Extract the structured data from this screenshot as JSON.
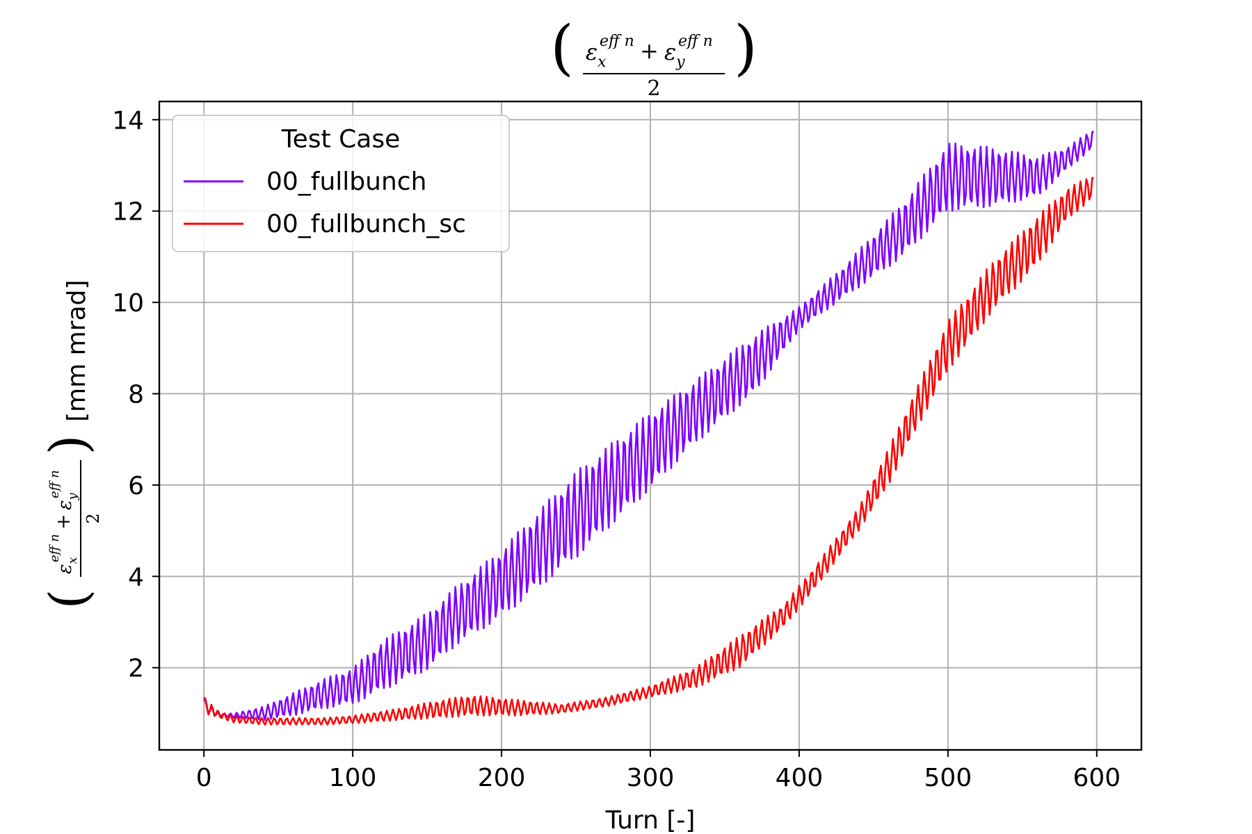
{
  "chart_data": {
    "type": "line",
    "title": {
      "frac_num": "εx eff n + εy eff n",
      "frac_den": "2"
    },
    "xlabel": "Turn [-]",
    "ylabel": {
      "frac_num": "εx eff n + εy eff n",
      "frac_den": "2",
      "unit": "[mm mrad]"
    },
    "xlim": [
      -30,
      630
    ],
    "ylim": [
      0.2,
      14.4
    ],
    "xticks": [
      0,
      100,
      200,
      300,
      400,
      500,
      600
    ],
    "yticks": [
      2,
      4,
      6,
      8,
      10,
      12,
      14
    ],
    "grid": true,
    "legend": {
      "title": "Test Case",
      "placement": "top-left"
    },
    "series": [
      {
        "name": "00_fullbunch",
        "color": "#7f00ff",
        "env": {
          "x": [
            0,
            10,
            20,
            40,
            60,
            80,
            100,
            120,
            150,
            170,
            200,
            250,
            300,
            330,
            370,
            400,
            430,
            470,
            500,
            530,
            560,
            580,
            598
          ],
          "lo": [
            1.0,
            0.95,
            0.9,
            0.85,
            0.95,
            1.1,
            1.2,
            1.5,
            1.95,
            2.5,
            3.1,
            4.4,
            5.9,
            6.9,
            8.0,
            9.4,
            10.1,
            11.0,
            12.0,
            12.1,
            12.3,
            12.9,
            13.4
          ],
          "hi": [
            1.3,
            1.0,
            1.0,
            1.15,
            1.45,
            1.75,
            2.0,
            2.6,
            3.2,
            3.8,
            4.6,
            6.3,
            7.6,
            8.3,
            9.3,
            9.9,
            10.8,
            12.2,
            13.5,
            13.4,
            13.2,
            13.4,
            13.8
          ]
        }
      },
      {
        "name": "00_fullbunch_sc",
        "color": "#ff0000",
        "env": {
          "x": [
            0,
            10,
            20,
            40,
            60,
            80,
            100,
            130,
            160,
            180,
            210,
            240,
            270,
            300,
            330,
            360,
            390,
            410,
            440,
            460,
            480,
            500,
            530,
            560,
            580,
            598
          ],
          "lo": [
            1.0,
            0.9,
            0.8,
            0.75,
            0.75,
            0.75,
            0.78,
            0.85,
            0.9,
            0.95,
            0.95,
            1.0,
            1.15,
            1.35,
            1.55,
            2.0,
            2.9,
            3.7,
            5.0,
            6.0,
            7.3,
            8.5,
            9.8,
            10.8,
            11.8,
            12.3
          ],
          "hi": [
            1.35,
            1.05,
            0.95,
            0.9,
            0.9,
            0.9,
            0.95,
            1.1,
            1.3,
            1.4,
            1.3,
            1.2,
            1.35,
            1.6,
            2.0,
            2.7,
            3.4,
            4.2,
            5.5,
            6.8,
            8.2,
            9.6,
            10.9,
            11.9,
            12.5,
            12.8
          ]
        }
      }
    ]
  }
}
